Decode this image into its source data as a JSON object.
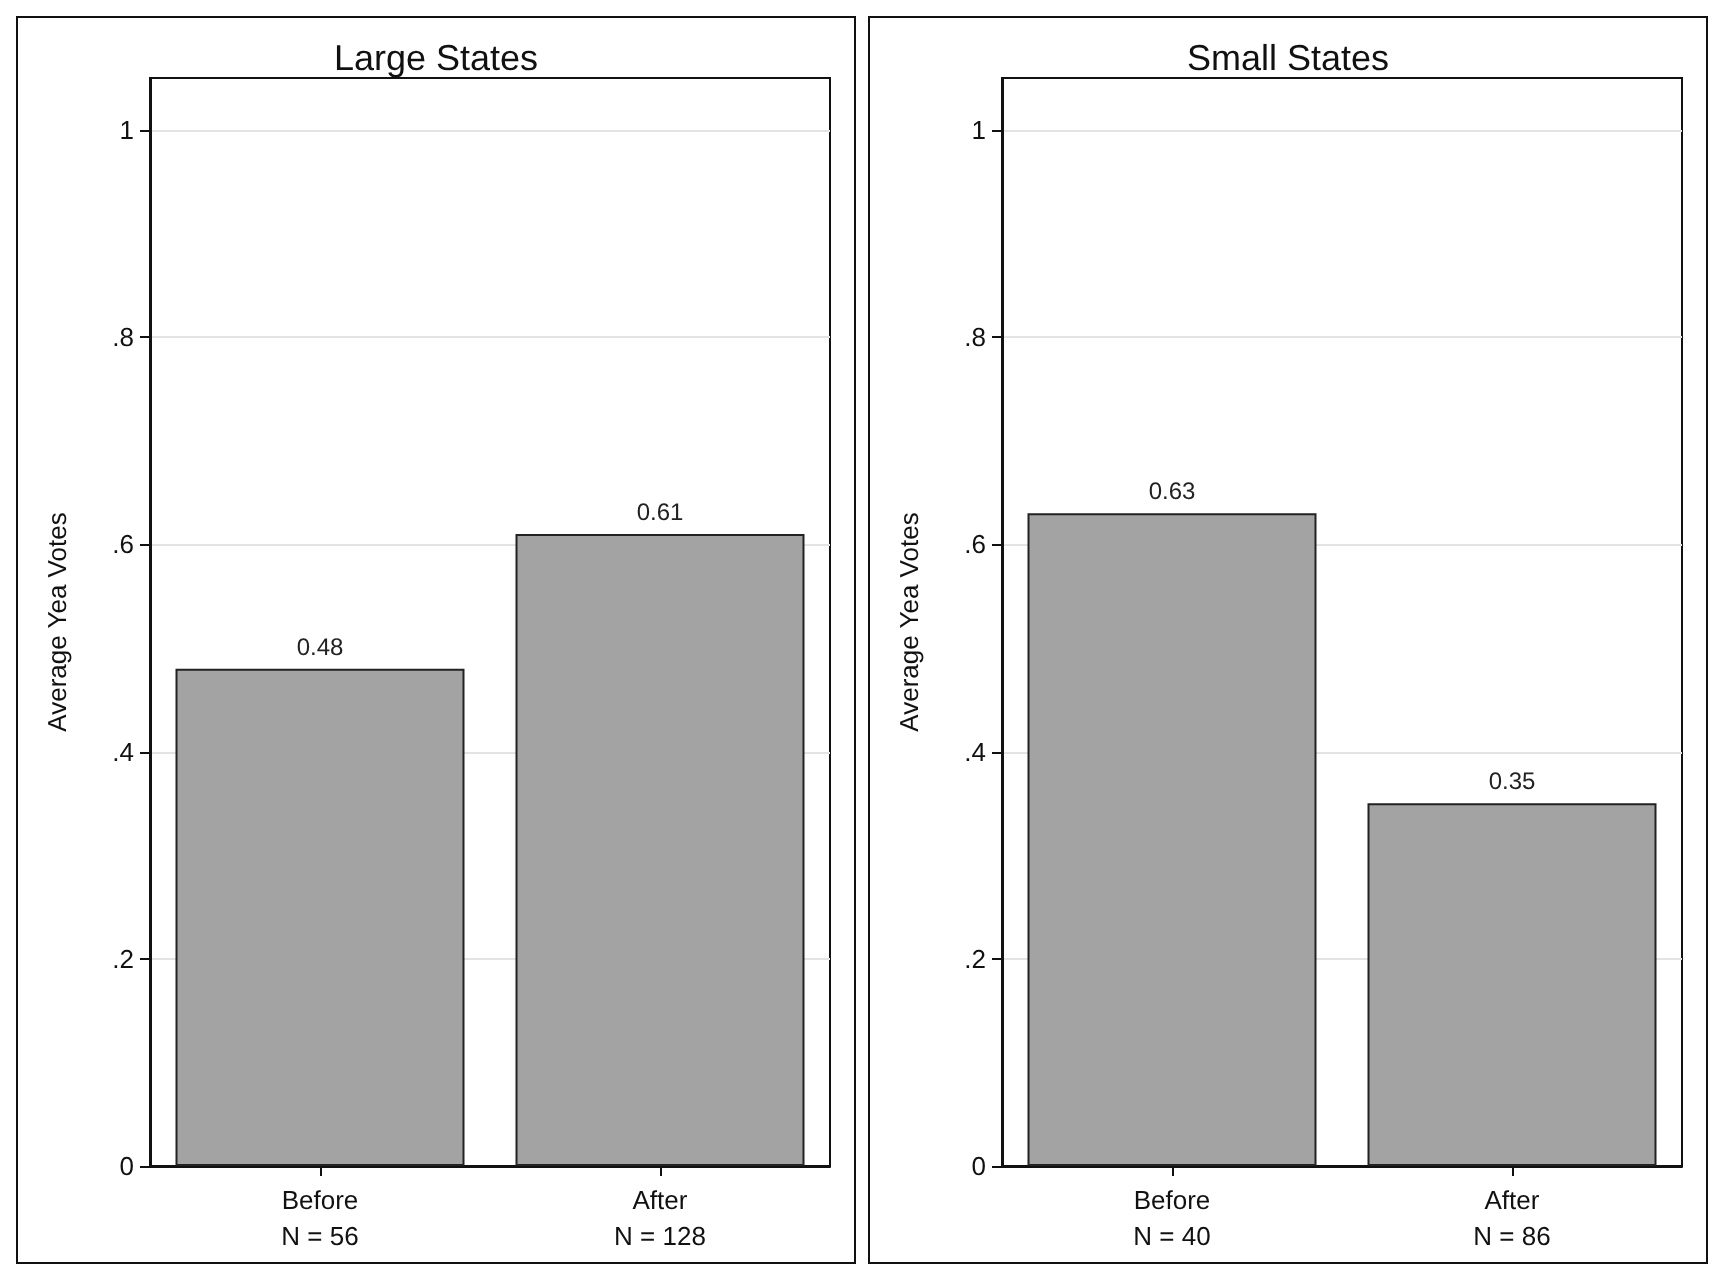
{
  "chart_data": [
    {
      "type": "bar",
      "title": "Large States",
      "ylabel": "Average Yea Votes",
      "categories": [
        "Before\nN = 56",
        "After\nN = 128"
      ],
      "values": [
        0.48,
        0.61
      ],
      "color": "#a3a3a3",
      "ylim": [
        0,
        1.05
      ],
      "yticks": [
        {
          "value": 0,
          "label": "0"
        },
        {
          "value": 0.2,
          "label": ".2"
        },
        {
          "value": 0.4,
          "label": ".4"
        },
        {
          "value": 0.6,
          "label": ".6"
        },
        {
          "value": 0.8,
          "label": ".8"
        },
        {
          "value": 1,
          "label": "1"
        }
      ],
      "grid": "y",
      "data_labels": true
    },
    {
      "type": "bar",
      "title": "Small States",
      "ylabel": "Average Yea Votes",
      "categories": [
        "Before\nN = 40",
        "After\nN = 86"
      ],
      "values": [
        0.63,
        0.35
      ],
      "color": "#a3a3a3",
      "ylim": [
        0,
        1.05
      ],
      "yticks": [
        {
          "value": 0,
          "label": "0"
        },
        {
          "value": 0.2,
          "label": ".2"
        },
        {
          "value": 0.4,
          "label": ".4"
        },
        {
          "value": 0.6,
          "label": ".6"
        },
        {
          "value": 0.8,
          "label": ".8"
        },
        {
          "value": 1,
          "label": "1"
        }
      ],
      "grid": "y",
      "data_labels": true
    }
  ]
}
